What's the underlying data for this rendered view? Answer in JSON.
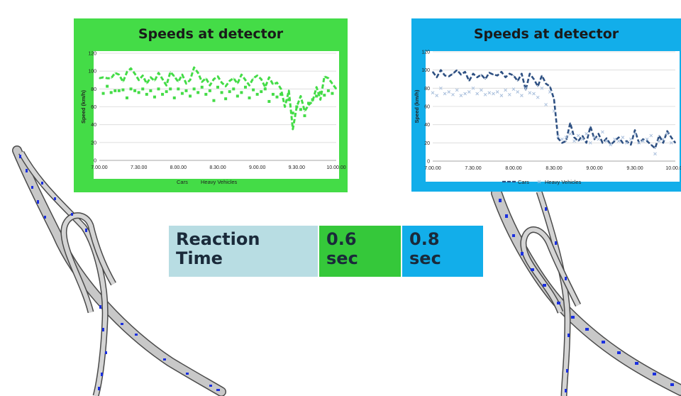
{
  "colors": {
    "left_panel_bg": "#44dc47",
    "right_panel_bg": "#12aeea",
    "left_series": "#44dc47",
    "right_cars": "#2e5082",
    "right_heavy": "#a9bfdc",
    "table_label_bg": "#b8dde3",
    "table_green": "#35c83a",
    "table_blue": "#12aeea",
    "road_fill": "#c8c8c8",
    "road_edge": "#4a4a4a",
    "vehicle": "#1a2fe0"
  },
  "reaction_table": {
    "label": "Reaction\nTime",
    "value_1": "0.6\nsec",
    "value_2": "0.8\nsec"
  },
  "chart_data": [
    {
      "type": "line",
      "title": "Speeds at detector",
      "xlabel": "",
      "ylabel": "Speed (km/h)",
      "ylim": [
        0,
        120
      ],
      "yticks": [
        "0",
        "20",
        "40",
        "60",
        "80",
        "100",
        "120"
      ],
      "xlim": [
        0,
        180
      ],
      "x_tick_labels": [
        "7.00.00",
        "7.30.00",
        "8.00.00",
        "8.30.00",
        "9.00.00",
        "9.30.00",
        "10.00.00"
      ],
      "grid": "horizontal",
      "legend": "bottom",
      "series": [
        {
          "name": "Cars",
          "style": "dashed-line",
          "x": [
            0,
            3,
            6,
            9,
            12,
            15,
            18,
            21,
            24,
            27,
            30,
            33,
            36,
            39,
            42,
            45,
            48,
            51,
            54,
            57,
            60,
            63,
            66,
            69,
            72,
            75,
            78,
            81,
            84,
            87,
            90,
            93,
            96,
            99,
            102,
            105,
            108,
            111,
            114,
            117,
            120,
            123,
            126,
            129,
            132,
            135,
            138,
            141,
            144,
            147,
            150,
            153,
            156,
            159,
            162,
            165,
            168,
            171,
            174,
            177,
            180
          ],
          "values": [
            92,
            93,
            92,
            92,
            98,
            96,
            88,
            99,
            103,
            97,
            90,
            95,
            86,
            93,
            89,
            98,
            91,
            84,
            99,
            94,
            88,
            96,
            86,
            90,
            104,
            98,
            88,
            92,
            84,
            91,
            94,
            87,
            83,
            89,
            92,
            86,
            96,
            90,
            84,
            92,
            95,
            91,
            82,
            93,
            85,
            87,
            80,
            60,
            78,
            35,
            60,
            72,
            55,
            62,
            66,
            82,
            68,
            94,
            92,
            86,
            80
          ]
        },
        {
          "name": "Heavy Vehicles",
          "style": "markers",
          "x": [
            3,
            6,
            9,
            12,
            15,
            18,
            21,
            24,
            27,
            30,
            33,
            36,
            39,
            42,
            45,
            48,
            51,
            54,
            57,
            60,
            63,
            66,
            69,
            72,
            75,
            78,
            81,
            84,
            87,
            90,
            93,
            96,
            99,
            102,
            105,
            108,
            111,
            114,
            117,
            120,
            123,
            126,
            129,
            132,
            135,
            138,
            144,
            147,
            150,
            153,
            156,
            159,
            162,
            165,
            168,
            171,
            174,
            177
          ],
          "values": [
            75,
            83,
            76,
            78,
            78,
            79,
            70,
            80,
            78,
            76,
            80,
            74,
            78,
            71,
            80,
            74,
            77,
            80,
            70,
            80,
            75,
            78,
            72,
            80,
            76,
            82,
            74,
            78,
            67,
            82,
            76,
            69,
            77,
            80,
            72,
            76,
            82,
            70,
            79,
            74,
            77,
            80,
            66,
            74,
            71,
            74,
            68,
            53,
            60,
            57,
            50,
            64,
            68,
            72,
            76,
            73,
            78,
            75
          ]
        }
      ]
    },
    {
      "type": "line",
      "title": "Speeds at detector",
      "xlabel": "",
      "ylabel": "Speed (km/h)",
      "ylim": [
        0,
        120
      ],
      "yticks": [
        "0",
        "20",
        "40",
        "60",
        "80",
        "100",
        "120"
      ],
      "xlim": [
        0,
        180
      ],
      "x_tick_labels": [
        "7.00.00",
        "7.30.00",
        "8.00.00",
        "8.30.00",
        "9.00.00",
        "9.30.00",
        "10.00.00"
      ],
      "grid": "horizontal",
      "legend": "bottom",
      "series": [
        {
          "name": "Cars",
          "style": "dashed-line",
          "x": [
            0,
            3,
            6,
            9,
            12,
            15,
            18,
            21,
            24,
            27,
            30,
            33,
            36,
            39,
            42,
            45,
            48,
            51,
            54,
            57,
            60,
            63,
            66,
            69,
            72,
            75,
            78,
            81,
            84,
            87,
            90,
            93,
            96,
            99,
            102,
            105,
            108,
            111,
            114,
            117,
            120,
            123,
            126,
            129,
            132,
            135,
            138,
            141,
            144,
            147,
            150,
            153,
            156,
            159,
            162,
            165,
            168,
            171,
            174,
            177,
            180
          ],
          "values": [
            98,
            92,
            100,
            94,
            93,
            96,
            100,
            95,
            98,
            88,
            96,
            92,
            95,
            90,
            97,
            95,
            94,
            98,
            92,
            96,
            94,
            88,
            96,
            78,
            96,
            90,
            82,
            94,
            85,
            82,
            68,
            25,
            20,
            22,
            42,
            26,
            22,
            28,
            20,
            38,
            24,
            30,
            20,
            25,
            18,
            22,
            26,
            20,
            22,
            18,
            34,
            20,
            24,
            22,
            18,
            14,
            28,
            20,
            33,
            26,
            20
          ]
        },
        {
          "name": "Heavy Vehicles",
          "style": "markers",
          "x": [
            0,
            3,
            6,
            9,
            12,
            15,
            18,
            21,
            24,
            27,
            30,
            33,
            36,
            39,
            42,
            45,
            48,
            51,
            54,
            57,
            60,
            63,
            66,
            69,
            72,
            75,
            78,
            81,
            84,
            87,
            90,
            93,
            96,
            99,
            102,
            105,
            108,
            111,
            114,
            117,
            120,
            123,
            126,
            129,
            132,
            135,
            138,
            141,
            144,
            147,
            150,
            153,
            156,
            159,
            162,
            165,
            168,
            171,
            174,
            177
          ],
          "values": [
            75,
            72,
            80,
            74,
            76,
            73,
            78,
            72,
            74,
            76,
            80,
            74,
            78,
            73,
            75,
            74,
            76,
            72,
            78,
            73,
            79,
            76,
            72,
            80,
            75,
            74,
            70,
            80,
            62,
            76,
            55,
            27,
            24,
            26,
            30,
            22,
            28,
            24,
            30,
            20,
            26,
            24,
            32,
            22,
            18,
            24,
            22,
            26,
            20,
            24,
            30,
            20,
            22,
            24,
            28,
            8,
            22,
            24,
            30,
            20
          ]
        }
      ]
    }
  ]
}
